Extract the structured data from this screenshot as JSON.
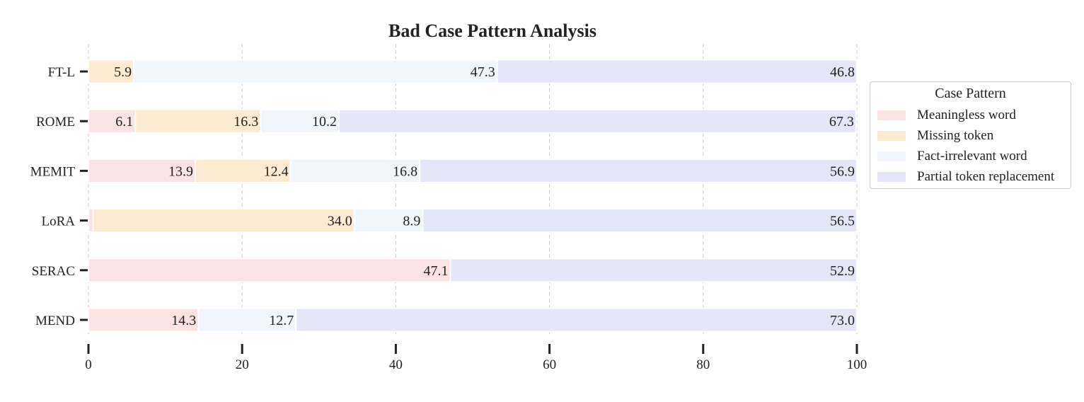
{
  "chart_data": {
    "type": "bar",
    "orientation": "horizontal",
    "stacked": true,
    "title": "Bad Case Pattern Analysis",
    "xlabel": "",
    "ylabel": "",
    "xlim": [
      0,
      100
    ],
    "xticks": [
      "0",
      "20",
      "40",
      "60",
      "80",
      "100"
    ],
    "grid": "vertical dashed",
    "legend_position": "right",
    "legend_title": "Case Pattern",
    "categories": [
      "FT-L",
      "ROME",
      "MEMIT",
      "LoRA",
      "SERAC",
      "MEND"
    ],
    "series": [
      {
        "name": "Meaningless word",
        "color": "#fbe3e3",
        "values": [
          0.0,
          6.1,
          13.9,
          0.6,
          47.1,
          14.3
        ],
        "labels": [
          "",
          "6.1",
          "13.9",
          "",
          "47.1",
          "14.3"
        ]
      },
      {
        "name": "Missing token",
        "color": "#fcebd0",
        "values": [
          5.9,
          16.3,
          12.4,
          34.0,
          0.0,
          0.0
        ],
        "labels": [
          "5.9",
          "16.3",
          "12.4",
          "34.0",
          "",
          ""
        ]
      },
      {
        "name": "Fact-irrelevant word",
        "color": "#f1f6fc",
        "values": [
          47.3,
          10.2,
          16.8,
          8.9,
          0.0,
          12.7
        ],
        "labels": [
          "47.3",
          "10.2",
          "16.8",
          "8.9",
          "",
          "12.7"
        ]
      },
      {
        "name": "Partial token replacement",
        "color": "#e6e6f9",
        "values": [
          46.8,
          67.3,
          56.9,
          56.5,
          52.9,
          73.0
        ],
        "labels": [
          "46.8",
          "67.3",
          "56.9",
          "56.5",
          "52.9",
          "73.0"
        ]
      }
    ]
  }
}
